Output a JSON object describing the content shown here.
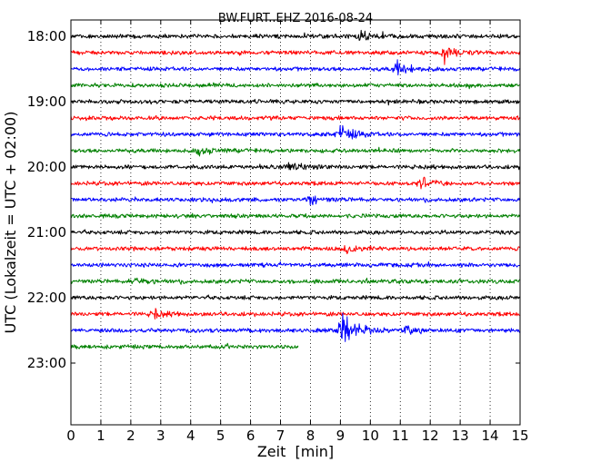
{
  "chart_data": {
    "type": "line",
    "title": "BW.FURT..EHZ 2016-08-24",
    "xlabel": "Zeit  [min]",
    "ylabel": "UTC (Lokalzeit = UTC + 02:00)",
    "xlim": [
      0,
      15
    ],
    "x_ticks": [
      "0",
      "1",
      "2",
      "3",
      "4",
      "5",
      "6",
      "7",
      "8",
      "9",
      "10",
      "11",
      "12",
      "13",
      "14",
      "15"
    ],
    "y_ticks": [
      "18:00",
      "19:00",
      "20:00",
      "21:00",
      "22:00",
      "23:00"
    ],
    "grid": "vertical dotted at each minute",
    "trace_colors": [
      "#000000",
      "#ff0000",
      "#0000ff",
      "#008000"
    ],
    "traces": [
      {
        "start": "18:00",
        "end_min": 15
      },
      {
        "start": "18:15",
        "end_min": 15
      },
      {
        "start": "18:30",
        "end_min": 15
      },
      {
        "start": "18:45",
        "end_min": 15
      },
      {
        "start": "19:00",
        "end_min": 15
      },
      {
        "start": "19:15",
        "end_min": 15
      },
      {
        "start": "19:30",
        "end_min": 15
      },
      {
        "start": "19:45",
        "end_min": 15
      },
      {
        "start": "20:00",
        "end_min": 15
      },
      {
        "start": "20:15",
        "end_min": 15
      },
      {
        "start": "20:30",
        "end_min": 15
      },
      {
        "start": "20:45",
        "end_min": 15
      },
      {
        "start": "21:00",
        "end_min": 15
      },
      {
        "start": "21:15",
        "end_min": 15
      },
      {
        "start": "21:30",
        "end_min": 15
      },
      {
        "start": "21:45",
        "end_min": 15
      },
      {
        "start": "22:00",
        "end_min": 15
      },
      {
        "start": "22:15",
        "end_min": 15
      },
      {
        "start": "22:30",
        "end_min": 15
      },
      {
        "start": "22:45",
        "end_min": 7.6
      }
    ],
    "events": [
      {
        "trace": "18:00",
        "min": 9.7,
        "amp": 1.6
      },
      {
        "trace": "18:15",
        "min": 12.5,
        "amp": 1.5
      },
      {
        "trace": "18:30",
        "min": 10.9,
        "amp": 2.0
      },
      {
        "trace": "19:30",
        "min": 9.0,
        "amp": 2.2
      },
      {
        "trace": "19:45",
        "min": 4.3,
        "amp": 1.2
      },
      {
        "trace": "20:00",
        "min": 7.3,
        "amp": 1.0
      },
      {
        "trace": "20:15",
        "min": 11.7,
        "amp": 1.4
      },
      {
        "trace": "20:30",
        "min": 8.0,
        "amp": 1.1
      },
      {
        "trace": "21:15",
        "min": 9.3,
        "amp": 1.1
      },
      {
        "trace": "21:45",
        "min": 2.1,
        "amp": 1.0
      },
      {
        "trace": "22:15",
        "min": 2.8,
        "amp": 1.1
      },
      {
        "trace": "22:30",
        "min": 9.1,
        "amp": 4.5
      },
      {
        "trace": "22:30",
        "min": 11.2,
        "amp": 1.4
      }
    ]
  }
}
